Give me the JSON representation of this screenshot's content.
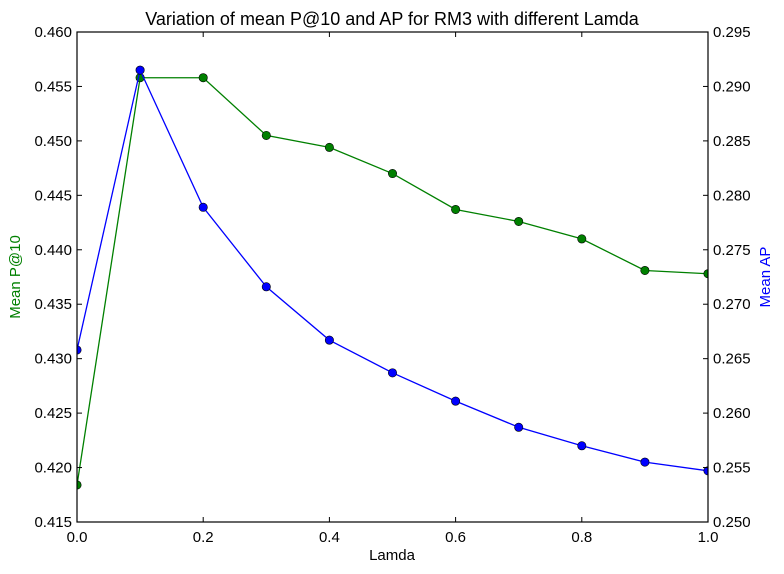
{
  "chart_data": {
    "type": "line",
    "title": "Variation of mean P@10 and AP for RM3 with different Lamda",
    "xlabel": "Lamda",
    "ylabel_left": "Mean P@10",
    "ylabel_right": "Mean AP",
    "xlim": [
      0.0,
      1.0
    ],
    "ylim_left": [
      0.415,
      0.46
    ],
    "ylim_right": [
      0.25,
      0.295
    ],
    "x_ticks": [
      "0.0",
      "0.2",
      "0.4",
      "0.6",
      "0.8",
      "1.0"
    ],
    "y_left_ticks": [
      "0.415",
      "0.420",
      "0.425",
      "0.430",
      "0.435",
      "0.440",
      "0.445",
      "0.450",
      "0.455",
      "0.460"
    ],
    "y_right_ticks": [
      "0.250",
      "0.255",
      "0.260",
      "0.265",
      "0.270",
      "0.275",
      "0.280",
      "0.285",
      "0.290",
      "0.295"
    ],
    "grid": false,
    "x": [
      0.0,
      0.1,
      0.2,
      0.3,
      0.4,
      0.5,
      0.6,
      0.7,
      0.8,
      0.9,
      1.0
    ],
    "series": [
      {
        "axis": "left",
        "color": "#008000",
        "values": [
          0.4184,
          0.4558,
          0.4558,
          0.4505,
          0.4494,
          0.447,
          0.4437,
          0.4426,
          0.441,
          0.4381,
          0.4378
        ]
      },
      {
        "axis": "right",
        "color": "#0000ff",
        "values": [
          0.2658,
          0.2915,
          0.2789,
          0.2716,
          0.2667,
          0.2637,
          0.2611,
          0.2587,
          0.257,
          0.2555,
          0.2547
        ]
      }
    ],
    "label_colors": {
      "left": "#008000",
      "right": "#0000ff"
    }
  }
}
